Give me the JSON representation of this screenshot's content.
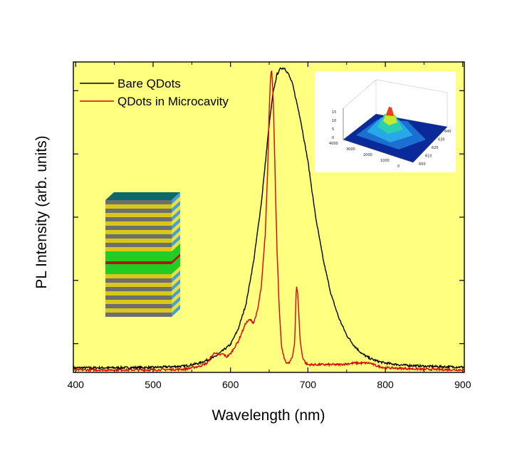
{
  "chart_data": {
    "type": "line",
    "xlabel": "Wavelength (nm)",
    "ylabel": "PL Intensity (arb. units)",
    "xlim": [
      397,
      902
    ],
    "ylim": [
      0,
      100
    ],
    "x_ticks": [
      400,
      500,
      600,
      700,
      800,
      900
    ],
    "y_tick_labels_shown": false,
    "grid": false,
    "background": "#ffff80",
    "legend_position": "top-left",
    "series": [
      {
        "name": "Bare QDots",
        "color": "#000000",
        "x": [
          397,
          450,
          500,
          540,
          560,
          580,
          600,
          610,
          620,
          630,
          640,
          650,
          655,
          660,
          665,
          670,
          675,
          680,
          690,
          700,
          710,
          720,
          730,
          740,
          750,
          760,
          770,
          780,
          790,
          800,
          820,
          850,
          880,
          902
        ],
        "y": [
          1.5,
          1.5,
          1.6,
          2,
          3,
          5,
          9,
          14,
          22,
          36,
          55,
          80,
          90,
          96,
          98,
          98,
          96,
          93,
          82,
          68,
          50,
          36,
          25,
          17.5,
          12,
          8.5,
          6,
          4.5,
          3.6,
          3,
          2.4,
          2,
          1.8,
          1.7
        ]
      },
      {
        "name": "QDots in Microcavity",
        "color": "#dd0000",
        "x": [
          397,
          450,
          500,
          540,
          560,
          570,
          575,
          580,
          585,
          590,
          595,
          600,
          605,
          610,
          615,
          620,
          625,
          630,
          635,
          640,
          645,
          648,
          650,
          652,
          653,
          655,
          657,
          660,
          663,
          666,
          670,
          673,
          676,
          680,
          683,
          685,
          687,
          690,
          693,
          697,
          700,
          710,
          720,
          740,
          760,
          780,
          790,
          800,
          850,
          902
        ],
        "y": [
          0.8,
          0.8,
          0.8,
          1,
          2,
          3,
          5,
          6.5,
          5.5,
          6,
          5,
          6,
          8,
          10,
          13,
          16,
          17,
          16,
          20,
          28,
          45,
          65,
          85,
          96,
          98,
          90,
          70,
          40,
          20,
          8,
          4,
          3,
          3,
          5,
          10,
          28,
          25,
          10,
          5,
          3,
          2.5,
          2.5,
          2.5,
          2.5,
          3,
          3,
          2,
          1.5,
          1,
          0.8
        ]
      }
    ]
  },
  "inset_surface_plot": {
    "z_ticks": [
      "15",
      "10",
      "5",
      "0"
    ],
    "x_ticks": [
      "4000",
      "3000",
      "2000",
      "1000",
      "0"
    ],
    "y_ticks": [
      "640",
      "630",
      "620",
      "610",
      "600"
    ]
  },
  "layer_stack_colors": {
    "yellow": "#d8c81a",
    "gray": "#6e6e6e",
    "green": "#22cc22",
    "red": "#aa1a1a",
    "teal": "#0e6a6a"
  }
}
